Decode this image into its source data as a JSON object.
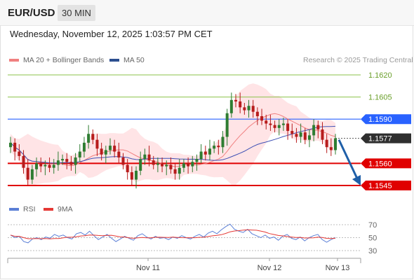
{
  "header": {
    "symbol": "EUR/USD",
    "timeframe": "30 MIN"
  },
  "date_line": "Wednesday, November 12, 2025 1:03:57 PM CET",
  "legend": {
    "ma20": "MA 20 + Bollinger Bands",
    "ma50": "MA 50",
    "rsi": "RSI",
    "ma9": "9MA"
  },
  "credit": "Research © 2025 Trading Central",
  "colors": {
    "bull": "#2e7d32",
    "bear": "#b71c1c",
    "resistance": "#8bc34a",
    "pivot": "#2962ff",
    "support": "#e00000",
    "bollinger": "#ffcdd2",
    "ma20": "#f08080",
    "ma50": "#3f51b5",
    "rsi": "#5b7fd6",
    "rsi_ma": "#e53935",
    "arrow": "#1f5fa8"
  },
  "chart_data": {
    "type": "candlestick",
    "y_axis": {
      "min": 1.1534,
      "max": 1.1628,
      "position": "right"
    },
    "levels": [
      {
        "label": "1.1620",
        "value": 1.162,
        "kind": "resistance"
      },
      {
        "label": "1.1605",
        "value": 1.1605,
        "kind": "resistance"
      },
      {
        "label": "1.1590",
        "value": 1.159,
        "kind": "pivot"
      },
      {
        "label": "1.1577",
        "value": 1.1577,
        "kind": "last"
      },
      {
        "label": "1.1560",
        "value": 1.156,
        "kind": "support"
      },
      {
        "label": "1.1545",
        "value": 1.1545,
        "kind": "support"
      }
    ],
    "forecast_arrow": {
      "from": 1.1577,
      "to": 1.1545
    },
    "x_ticks": [
      "Nov 11",
      "Nov 12",
      "Nov 13"
    ],
    "close": [
      1.1574,
      1.1568,
      1.1565,
      1.1557,
      1.1549,
      1.1556,
      1.156,
      1.1558,
      1.1559,
      1.1557,
      1.1559,
      1.1562,
      1.1563,
      1.1561,
      1.1559,
      1.1564,
      1.1568,
      1.1574,
      1.158,
      1.1576,
      1.157,
      1.1566,
      1.1569,
      1.1572,
      1.1568,
      1.1564,
      1.1559,
      1.1554,
      1.1549,
      1.1555,
      1.1563,
      1.1566,
      1.1562,
      1.1559,
      1.156,
      1.1558,
      1.1559,
      1.1556,
      1.1553,
      1.1557,
      1.156,
      1.1558,
      1.1561,
      1.1563,
      1.1568,
      1.1566,
      1.157,
      1.1572,
      1.1571,
      1.1578,
      1.1594,
      1.1603,
      1.1602,
      1.1598,
      1.1596,
      1.1599,
      1.1595,
      1.1592,
      1.1589,
      1.1587,
      1.1586,
      1.1584,
      1.1586,
      1.1587,
      1.1582,
      1.158,
      1.1578,
      1.1581,
      1.1576,
      1.1579,
      1.1586,
      1.1583,
      1.1576,
      1.1571,
      1.1569,
      1.1577
    ],
    "rsi": {
      "ticks": [
        70,
        50,
        30
      ],
      "range": [
        20,
        80
      ],
      "values": [
        54,
        50,
        52,
        44,
        42,
        48,
        50,
        47,
        51,
        49,
        55,
        52,
        54,
        50,
        48,
        56,
        58,
        54,
        60,
        53,
        47,
        51,
        55,
        49,
        44,
        48,
        52,
        49,
        46,
        53,
        56,
        51,
        48,
        52,
        49,
        50,
        47,
        51,
        49,
        53,
        50,
        48,
        52,
        55,
        51,
        57,
        60,
        56,
        62,
        67,
        71,
        63,
        60,
        58,
        63,
        56,
        53,
        50,
        54,
        49,
        51,
        46,
        52,
        55,
        49,
        47,
        51,
        45,
        50,
        53,
        55,
        47,
        43,
        47,
        50
      ]
    }
  }
}
